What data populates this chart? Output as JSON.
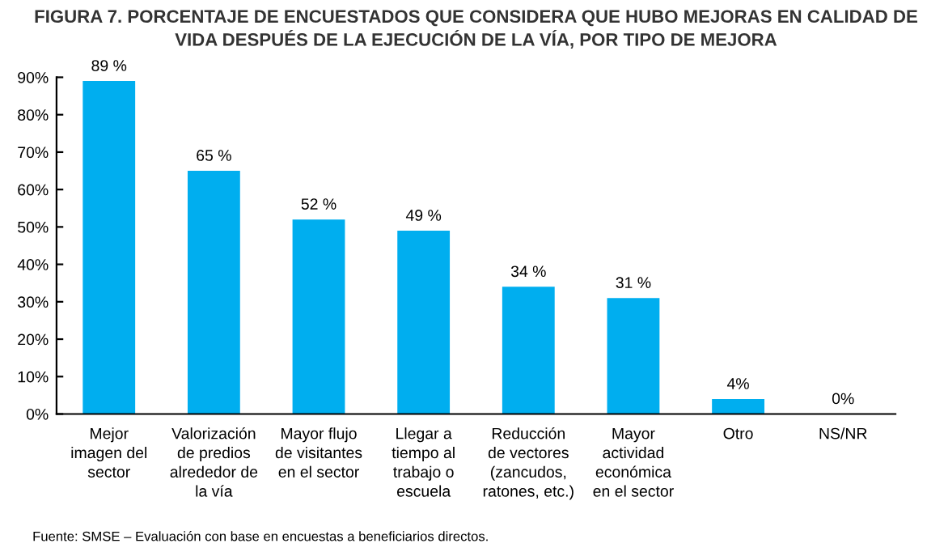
{
  "chart_data": {
    "type": "bar",
    "title": "FIGURA 7. PORCENTAJE DE ENCUESTADOS QUE CONSIDERA QUE HUBO MEJORAS EN CALIDAD DE\nVIDA DESPUÉS DE LA EJECUCIÓN DE LA VÍA, POR TIPO DE MEJORA",
    "categories": [
      "Mejor\nimagen del\nsector",
      "Valorización\nde predios\nalrededor de\nla vía",
      "Mayor flujo\nde visitantes\nen el sector",
      "Llegar a\ntiempo al\ntrabajo o\nescuela",
      "Reducción\nde vectores\n(zancudos,\nratones, etc.)",
      "Mayor\nactividad\neconómica\nen el sector",
      "Otro",
      "NS/NR"
    ],
    "values": [
      89,
      65,
      52,
      49,
      34,
      31,
      4,
      0
    ],
    "value_labels": [
      "89 %",
      "65 %",
      "52 %",
      "49 %",
      "34 %",
      "31 %",
      "4%",
      "0%"
    ],
    "color": "#00aeef",
    "ylim": [
      0,
      90
    ],
    "yticks": [
      {
        "value": 0,
        "label": "0%"
      },
      {
        "value": 10,
        "label": "10%"
      },
      {
        "value": 20,
        "label": "20%"
      },
      {
        "value": 30,
        "label": "30%"
      },
      {
        "value": 40,
        "label": "40%"
      },
      {
        "value": 50,
        "label": "50%"
      },
      {
        "value": 60,
        "label": "60%"
      },
      {
        "value": 70,
        "label": "70%"
      },
      {
        "value": 80,
        "label": "80%"
      },
      {
        "value": 90,
        "label": "90%"
      }
    ],
    "grid": false,
    "annotations": [
      "Fuente: SMSE – Evaluación con base en encuestas a beneficiarios directos."
    ]
  }
}
